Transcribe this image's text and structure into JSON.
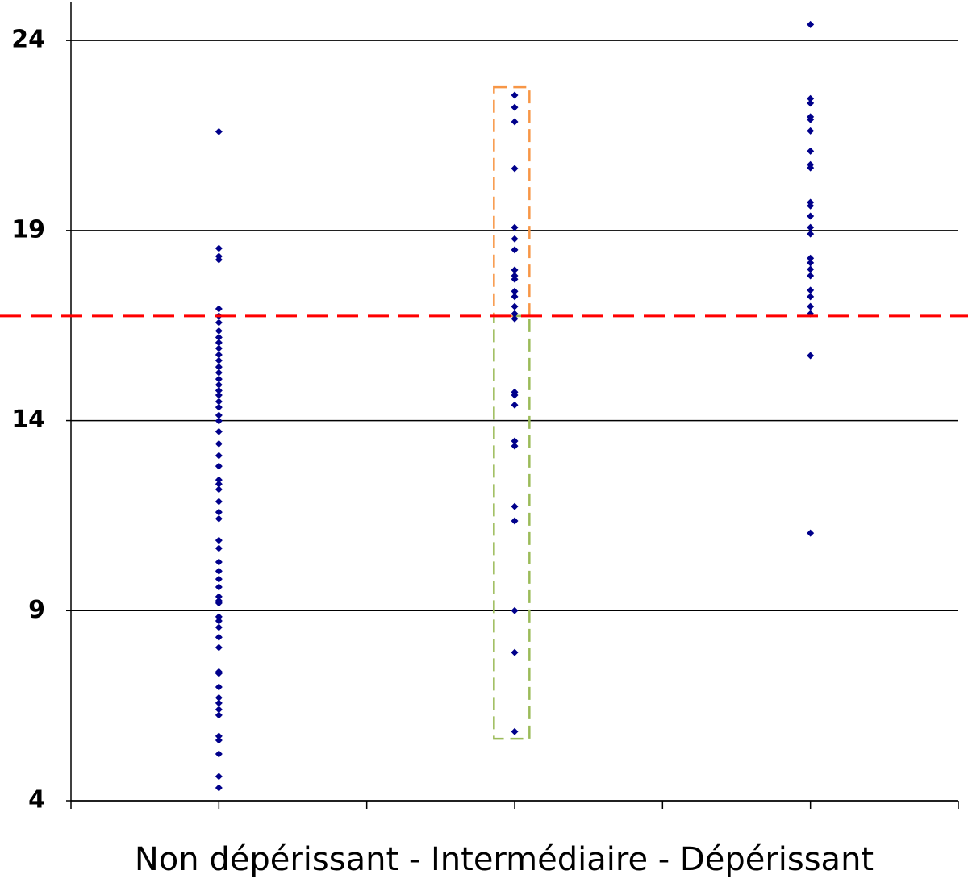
{
  "chart_data": {
    "type": "strip",
    "xlabel": "Non dépérissant   -    Intermédiaire    -     Dépérissant",
    "xlim": [
      0,
      3
    ],
    "xticks": [
      0,
      0.5,
      1,
      1.5,
      2,
      2.5,
      3
    ],
    "ylim": [
      4,
      25
    ],
    "yticks": [
      4,
      9,
      14,
      19,
      24
    ],
    "grid": true,
    "reference_line": {
      "value": 16.75,
      "color": "#ff0000"
    },
    "boxes": [
      {
        "x": [
          1.43,
          1.55
        ],
        "y": [
          16.75,
          22.77
        ],
        "color": "#f79646"
      },
      {
        "x": [
          1.43,
          1.55
        ],
        "y": [
          5.63,
          16.75
        ],
        "color": "#9bbb59"
      }
    ],
    "series": [
      {
        "color": "#00008b",
        "x": 0.5,
        "values": [
          21.6,
          18.53,
          18.32,
          18.23,
          16.94,
          16.75,
          16.58,
          16.36,
          16.19,
          16.05,
          15.9,
          15.73,
          15.58,
          15.41,
          15.26,
          15.09,
          14.94,
          14.79,
          14.67,
          14.5,
          14.35,
          14.14,
          13.99,
          13.71,
          13.39,
          13.08,
          12.8,
          12.44,
          12.33,
          12.19,
          11.87,
          11.59,
          11.42,
          10.85,
          10.64,
          10.28,
          10.04,
          9.83,
          9.62,
          9.37,
          9.26,
          9.2,
          8.84,
          8.73,
          8.56,
          8.3,
          8.03,
          7.39,
          7.35,
          6.99,
          6.71,
          6.57,
          6.4,
          6.25,
          5.7,
          5.59,
          5.23,
          4.64,
          4.34
        ]
      },
      {
        "color": "#00008b",
        "x": 1.5,
        "values": [
          22.56,
          22.24,
          21.86,
          20.63,
          19.08,
          18.78,
          18.49,
          17.96,
          17.81,
          17.72,
          17.4,
          17.26,
          17.0,
          16.81,
          16.68,
          14.75,
          14.67,
          14.41,
          13.46,
          13.33,
          11.74,
          11.36,
          9.0,
          7.9,
          5.82
        ]
      },
      {
        "color": "#00008b",
        "x": 2.5,
        "values": [
          24.42,
          22.47,
          22.35,
          21.99,
          21.92,
          21.62,
          21.09,
          20.73,
          20.65,
          19.74,
          19.65,
          19.38,
          19.08,
          18.91,
          18.27,
          18.15,
          17.98,
          17.81,
          17.43,
          17.26,
          17.0,
          16.81,
          15.71,
          11.04
        ]
      }
    ]
  }
}
